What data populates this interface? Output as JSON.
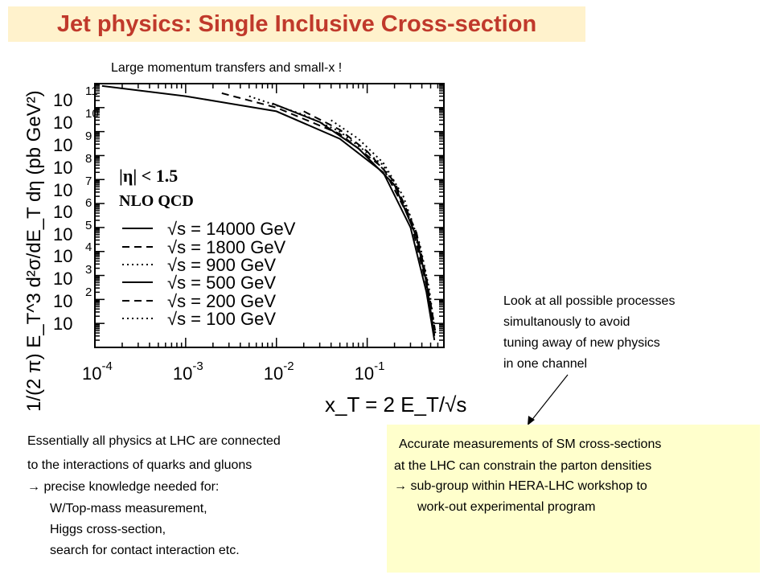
{
  "header": {
    "title": "Jet physics: Single Inclusive Cross-section"
  },
  "subtitle": "Large momentum transfers and small-x !",
  "note_right": {
    "lines": [
      "Look at all possible processes",
      "simultanously to avoid",
      "tuning away of new physics",
      "in one channel"
    ]
  },
  "bottom_left": {
    "lines": [
      "Essentially all physics at LHC are connected",
      "to the interactions of quarks and gluons",
      "→ precise knowledge needed for:",
      "W/Top-mass measurement,",
      "Higgs cross-section,",
      "search for contact interaction etc."
    ]
  },
  "box_right": {
    "lines": [
      "Accurate measurements of SM cross-sections",
      "at the LHC can constrain the parton densities",
      "→ sub-group within HERA-LHC workshop to",
      "work-out experimental program"
    ],
    "background": "#ffffcc"
  },
  "colors": {
    "title": "#c0392b",
    "title_background": "#fff2cc"
  },
  "chart_data": {
    "type": "line",
    "title": "",
    "xlabel": "x_T = 2 E_T/√s",
    "ylabel": "1/(2 π) E_T^3 d²σ/dE_T dη (pb GeV²)",
    "xscale": "log",
    "yscale": "log",
    "xlim": [
      0.0001,
      0.7
    ],
    "ylim": [
      1.0,
      100000000000.0
    ],
    "x_ticks": [
      {
        "base": "10",
        "exp": "-4"
      },
      {
        "base": "10",
        "exp": "-3"
      },
      {
        "base": "10",
        "exp": "-2"
      },
      {
        "base": "10",
        "exp": "-1"
      }
    ],
    "y_ticks": [
      {
        "base": "10",
        "exp": "11"
      },
      {
        "base": "10",
        "exp": "10"
      },
      {
        "base": "10",
        "exp": "9"
      },
      {
        "base": "10",
        "exp": "8"
      },
      {
        "base": "10",
        "exp": "7"
      },
      {
        "base": "10",
        "exp": "6"
      },
      {
        "base": "10",
        "exp": "5"
      },
      {
        "base": "10",
        "exp": "4"
      },
      {
        "base": "10",
        "exp": "3"
      },
      {
        "base": "10",
        "exp": "2"
      },
      {
        "base": "10",
        "exp": ""
      }
    ],
    "annotations": [
      "|η| < 1.5",
      "NLO QCD"
    ],
    "series": [
      {
        "name": "√s = 14000 GeV",
        "style": "solid",
        "points": [
          [
            0.00012,
            80000000000.0
          ],
          [
            0.001,
            30000000000.0
          ],
          [
            0.01,
            7000000000.0
          ],
          [
            0.05,
            500000000.0
          ],
          [
            0.15,
            20000000.0
          ],
          [
            0.3,
            100000.0
          ],
          [
            0.45,
            200
          ],
          [
            0.55,
            2
          ]
        ]
      },
      {
        "name": "√s = 1800 GeV",
        "style": "dashed",
        "points": [
          [
            0.0025,
            40000000000.0
          ],
          [
            0.01,
            10000000000.0
          ],
          [
            0.05,
            800000000.0
          ],
          [
            0.15,
            30000000.0
          ],
          [
            0.3,
            200000.0
          ],
          [
            0.45,
            400
          ],
          [
            0.55,
            3
          ]
        ]
      },
      {
        "name": "√s = 900 GeV",
        "style": "dotted",
        "points": [
          [
            0.005,
            30000000000.0
          ],
          [
            0.02,
            5000000000.0
          ],
          [
            0.05,
            1000000000.0
          ],
          [
            0.15,
            40000000.0
          ],
          [
            0.3,
            300000.0
          ],
          [
            0.45,
            600
          ],
          [
            0.56,
            4
          ]
        ]
      },
      {
        "name": "√s = 500 GeV",
        "style": "solid",
        "points": [
          [
            0.009,
            15000000000.0
          ],
          [
            0.03,
            2500000000.0
          ],
          [
            0.08,
            200000000.0
          ],
          [
            0.2,
            6000000.0
          ],
          [
            0.35,
            40000.0
          ],
          [
            0.45,
            500
          ],
          [
            0.55,
            3
          ]
        ]
      },
      {
        "name": "√s = 200 GeV",
        "style": "dashed",
        "points": [
          [
            0.02,
            7000000000.0
          ],
          [
            0.05,
            1200000000.0
          ],
          [
            0.1,
            150000000.0
          ],
          [
            0.2,
            8000000.0
          ],
          [
            0.35,
            60000.0
          ],
          [
            0.45,
            800
          ],
          [
            0.56,
            5
          ]
        ]
      },
      {
        "name": "√s = 100 GeV",
        "style": "dotted",
        "points": [
          [
            0.04,
            3000000000.0
          ],
          [
            0.08,
            500000000.0
          ],
          [
            0.15,
            50000000.0
          ],
          [
            0.25,
            2000000.0
          ],
          [
            0.38,
            20000.0
          ],
          [
            0.48,
            300
          ],
          [
            0.57,
            3
          ]
        ]
      }
    ]
  }
}
